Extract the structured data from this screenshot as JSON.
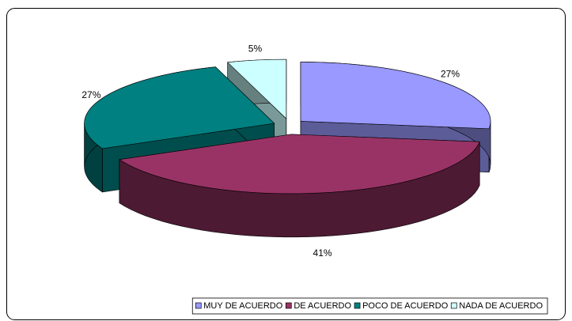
{
  "chart_data": {
    "type": "pie",
    "categories": [
      "MUY DE ACUERDO",
      "DE ACUERDO",
      "POCO DE ACUERDO",
      "NADA DE ACUERDO"
    ],
    "values": [
      27,
      41,
      27,
      5
    ],
    "value_labels": [
      "27%",
      "41%",
      "27%",
      "5%"
    ],
    "colors": [
      "#9999ff",
      "#993366",
      "#008080",
      "#ccffff"
    ],
    "legend": "bottom"
  }
}
